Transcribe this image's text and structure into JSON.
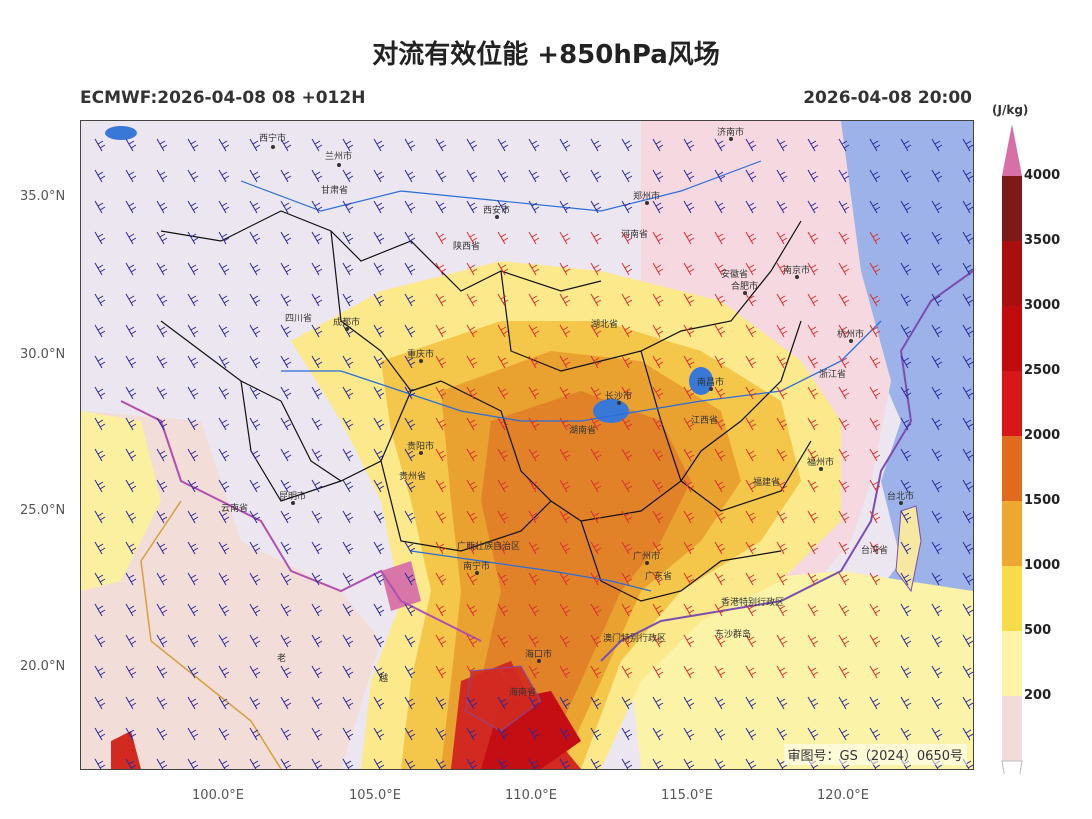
{
  "title": "对流有效位能 +850hPa风场",
  "subtitle_left": "ECMWF:2026-04-08 08 +012H",
  "subtitle_right": "2026-04-08 20:00",
  "lat_labels": [
    "35.0°N",
    "30.0°N",
    "25.0°N",
    "20.0°N"
  ],
  "lon_labels": [
    "100.0°E",
    "105.0°E",
    "110.0°E",
    "115.0°E",
    "120.0°E"
  ],
  "approval_number": "审图号：GS（2024）0650号",
  "colorbar": {
    "unit": "(J/kg)",
    "levels": [
      "200",
      "500",
      "1000",
      "1500",
      "2000",
      "2500",
      "3000",
      "3500",
      "4000"
    ],
    "colors": [
      "#f0dcd8",
      "#fdf4a8",
      "#f6dc48",
      "#eda830",
      "#e06a1e",
      "#d81818",
      "#c00c0c",
      "#a81010",
      "#7c1a1a",
      "#d870a8"
    ]
  },
  "cities": [
    "西宁市",
    "兰州市",
    "西安市",
    "郑州市",
    "济南市",
    "合肥市",
    "南京市",
    "杭州市",
    "成都市",
    "重庆市",
    "长沙市",
    "南昌市",
    "贵阳市",
    "昆明市",
    "福州市",
    "台北市",
    "南宁市",
    "广州市",
    "海口市"
  ],
  "region_labels": [
    "甘肃省",
    "陕西省",
    "河南省",
    "安徽省",
    "四川省",
    "湖北省",
    "浙江省",
    "湖南省",
    "江西省",
    "贵州省",
    "云南省",
    "福建省",
    "台湾省",
    "广西壮族自治区",
    "广东省",
    "香港特别行政区",
    "澳门特别行政区",
    "海南省",
    "东沙群岛",
    "老",
    "越"
  ]
}
